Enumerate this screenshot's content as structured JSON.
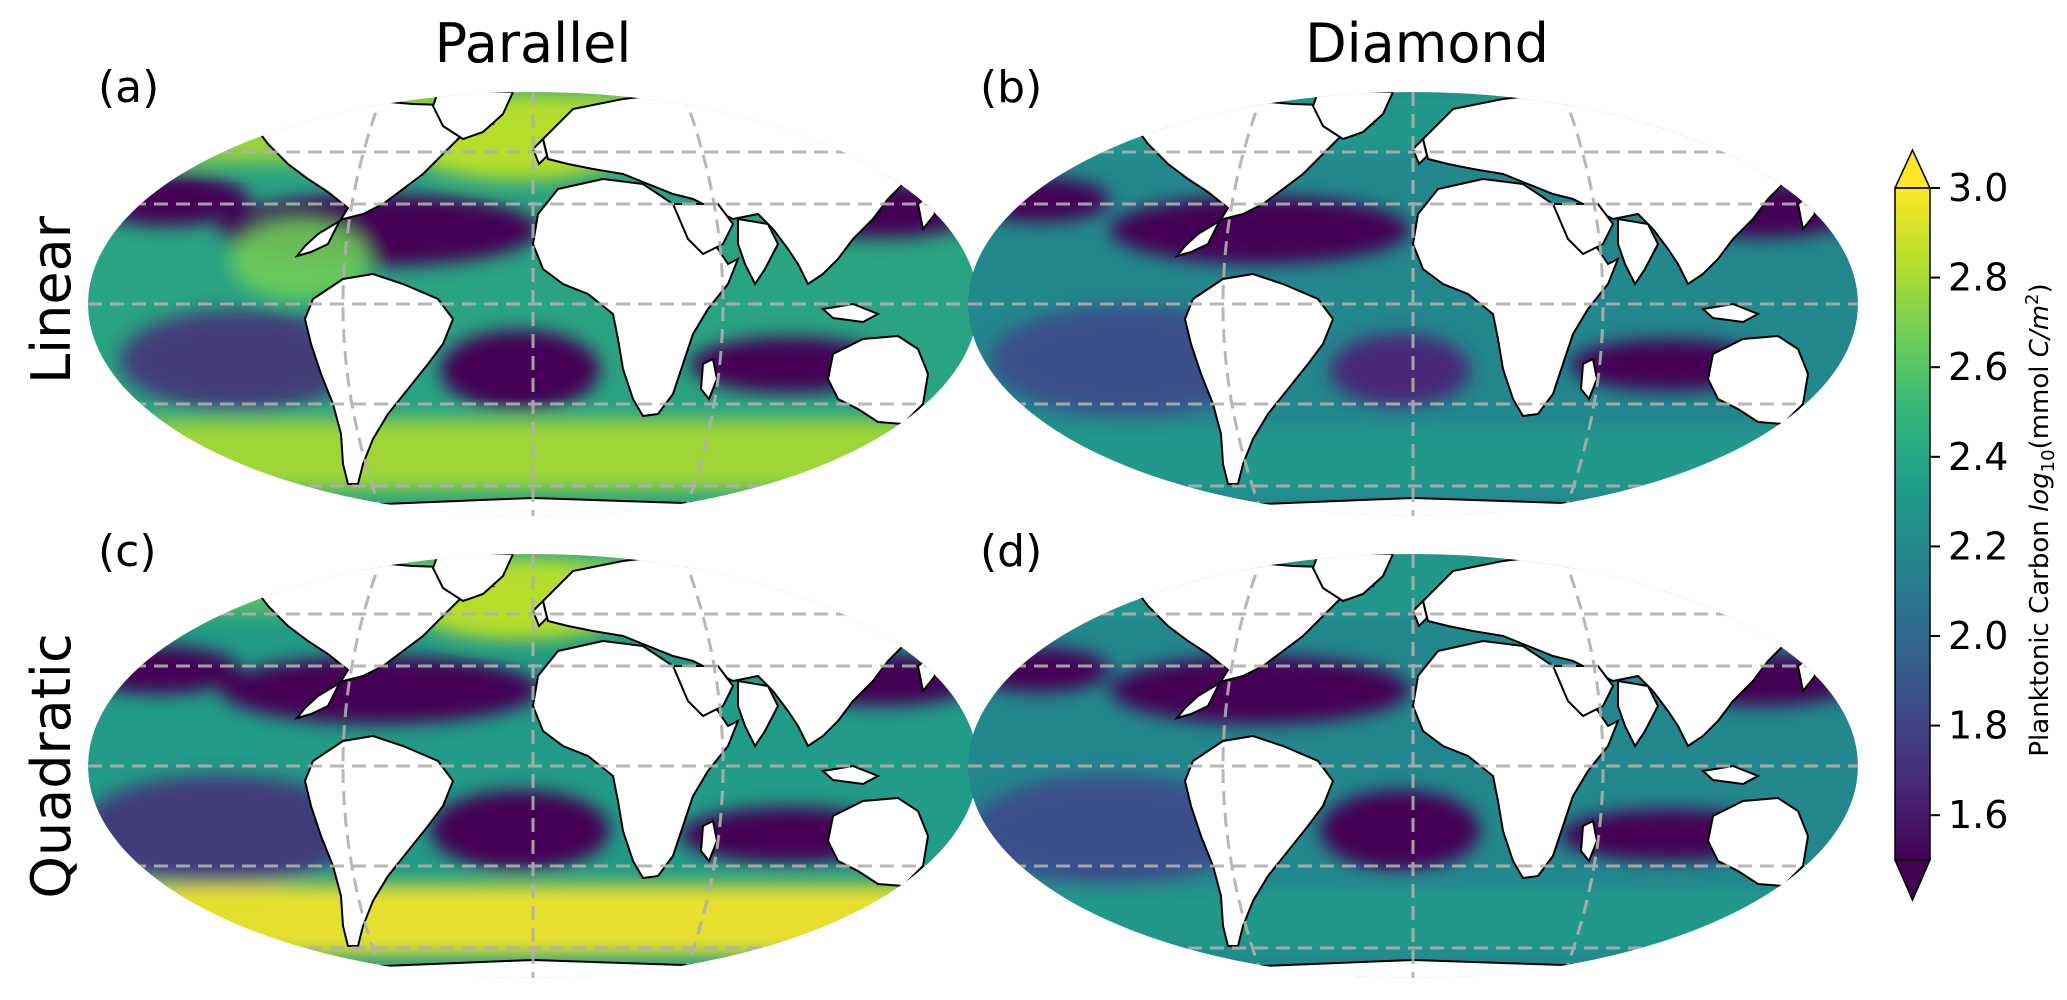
{
  "figure": {
    "column_titles": [
      "Parallel",
      "Diamond"
    ],
    "row_titles": [
      "Linear",
      "Quadratic"
    ],
    "panels": [
      {
        "label": "(a)",
        "scheme": "Parallel",
        "order": "Linear"
      },
      {
        "label": "(b)",
        "scheme": "Diamond",
        "order": "Linear"
      },
      {
        "label": "(c)",
        "scheme": "Parallel",
        "order": "Quadratic"
      },
      {
        "label": "(d)",
        "scheme": "Diamond",
        "order": "Quadratic"
      }
    ]
  },
  "colorbar": {
    "label_main": "Planktonic Carbon ",
    "label_math": "log",
    "label_sub": "10",
    "label_unit_open": "(mmol ",
    "label_unit_math": "C/m",
    "label_sup": "2",
    "label_close": ")",
    "ticks": [
      "3.0",
      "2.8",
      "2.6",
      "2.4",
      "2.2",
      "2.0",
      "1.8",
      "1.6"
    ],
    "range": [
      1.5,
      3.0
    ],
    "colormap": "viridis",
    "colors": [
      "#440154",
      "#482878",
      "#3e4989",
      "#31688e",
      "#26828e",
      "#1f9e89",
      "#35b779",
      "#6ece58",
      "#b5de2b",
      "#fde725"
    ]
  },
  "map": {
    "projection": "equal-earth",
    "land_color": "#ffffff",
    "coastline_color": "#000000",
    "gridline_color": "#b0b0b0"
  }
}
